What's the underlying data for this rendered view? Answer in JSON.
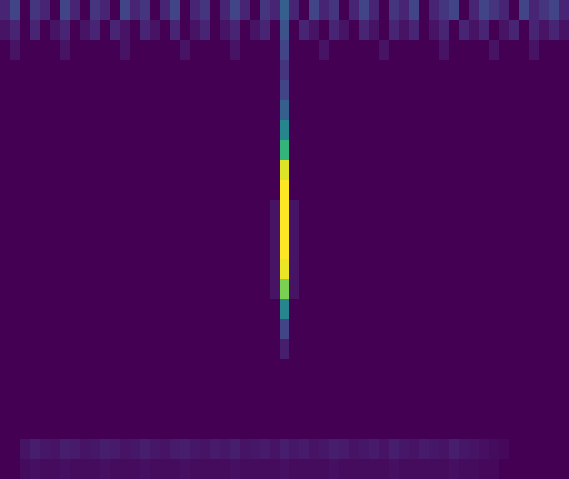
{
  "chart_data": {
    "type": "heatmap",
    "tick_labels": false,
    "zlim": [
      0,
      1
    ],
    "cells": [
      [
        0.1,
        0.2,
        0,
        0.15,
        0.1,
        0,
        0.2,
        0.1,
        0,
        0.15,
        0.1,
        0,
        0.2,
        0.1,
        0.15,
        0,
        0.1,
        0.2,
        0,
        0.1,
        0.15,
        0,
        0.1,
        0.2,
        0.1,
        0,
        0.15,
        0.1,
        0.3,
        0.1,
        0,
        0.2,
        0.1,
        0.15,
        0,
        0.1,
        0.2,
        0.1,
        0,
        0.15,
        0.1,
        0.2,
        0,
        0.1,
        0.15,
        0.2,
        0,
        0.1,
        0.2,
        0.15,
        0.1,
        0,
        0.2,
        0.1,
        0.15,
        0.2,
        0.1
      ],
      [
        0.05,
        0.1,
        0,
        0.1,
        0,
        0.05,
        0.1,
        0,
        0.05,
        0.1,
        0,
        0.1,
        0.05,
        0,
        0.1,
        0.05,
        0,
        0.1,
        0,
        0.05,
        0.1,
        0,
        0.05,
        0.1,
        0,
        0.05,
        0.1,
        0,
        0.25,
        0,
        0.1,
        0.05,
        0,
        0.1,
        0.05,
        0,
        0.1,
        0.05,
        0,
        0.1,
        0.05,
        0.1,
        0,
        0.05,
        0.1,
        0,
        0.1,
        0.05,
        0.1,
        0,
        0.05,
        0.1,
        0,
        0.1,
        0.05,
        0.1,
        0.05
      ],
      [
        0,
        0.05,
        0,
        0,
        0,
        0,
        0.05,
        0,
        0,
        0,
        0,
        0,
        0.05,
        0,
        0,
        0,
        0,
        0,
        0.05,
        0,
        0,
        0,
        0,
        0.05,
        0,
        0,
        0,
        0,
        0.2,
        0,
        0,
        0,
        0.05,
        0,
        0,
        0,
        0,
        0,
        0.05,
        0,
        0,
        0,
        0,
        0,
        0.05,
        0,
        0,
        0,
        0,
        0.05,
        0,
        0,
        0,
        0.05,
        0,
        0,
        0
      ],
      [
        0,
        0,
        0,
        0,
        0,
        0,
        0,
        0,
        0,
        0,
        0,
        0,
        0,
        0,
        0,
        0,
        0,
        0,
        0,
        0,
        0,
        0,
        0,
        0,
        0,
        0,
        0,
        0,
        0.15,
        0,
        0,
        0,
        0,
        0,
        0,
        0,
        0,
        0,
        0,
        0,
        0,
        0,
        0,
        0,
        0,
        0,
        0,
        0,
        0,
        0,
        0,
        0,
        0,
        0,
        0,
        0,
        0
      ],
      [
        0,
        0,
        0,
        0,
        0,
        0,
        0,
        0,
        0,
        0,
        0,
        0,
        0,
        0,
        0,
        0,
        0,
        0,
        0,
        0,
        0,
        0,
        0,
        0,
        0,
        0,
        0,
        0,
        0.2,
        0,
        0,
        0,
        0,
        0,
        0,
        0,
        0,
        0,
        0,
        0,
        0,
        0,
        0,
        0,
        0,
        0,
        0,
        0,
        0,
        0,
        0,
        0,
        0,
        0,
        0,
        0,
        0
      ],
      [
        0,
        0,
        0,
        0,
        0,
        0,
        0,
        0,
        0,
        0,
        0,
        0,
        0,
        0,
        0,
        0,
        0,
        0,
        0,
        0,
        0,
        0,
        0,
        0,
        0,
        0,
        0,
        0,
        0.3,
        0,
        0,
        0,
        0,
        0,
        0,
        0,
        0,
        0,
        0,
        0,
        0,
        0,
        0,
        0,
        0,
        0,
        0,
        0,
        0,
        0,
        0,
        0,
        0,
        0,
        0,
        0,
        0
      ],
      [
        0,
        0,
        0,
        0,
        0,
        0,
        0,
        0,
        0,
        0,
        0,
        0,
        0,
        0,
        0,
        0,
        0,
        0,
        0,
        0,
        0,
        0,
        0,
        0,
        0,
        0,
        0,
        0,
        0.45,
        0,
        0,
        0,
        0,
        0,
        0,
        0,
        0,
        0,
        0,
        0,
        0,
        0,
        0,
        0,
        0,
        0,
        0,
        0,
        0,
        0,
        0,
        0,
        0,
        0,
        0,
        0,
        0
      ],
      [
        0,
        0,
        0,
        0,
        0,
        0,
        0,
        0,
        0,
        0,
        0,
        0,
        0,
        0,
        0,
        0,
        0,
        0,
        0,
        0,
        0,
        0,
        0,
        0,
        0,
        0,
        0,
        0,
        0.65,
        0,
        0,
        0,
        0,
        0,
        0,
        0,
        0,
        0,
        0,
        0,
        0,
        0,
        0,
        0,
        0,
        0,
        0,
        0,
        0,
        0,
        0,
        0,
        0,
        0,
        0,
        0,
        0
      ],
      [
        0,
        0,
        0,
        0,
        0,
        0,
        0,
        0,
        0,
        0,
        0,
        0,
        0,
        0,
        0,
        0,
        0,
        0,
        0,
        0,
        0,
        0,
        0,
        0,
        0,
        0,
        0,
        0,
        0.95,
        0,
        0,
        0,
        0,
        0,
        0,
        0,
        0,
        0,
        0,
        0,
        0,
        0,
        0,
        0,
        0,
        0,
        0,
        0,
        0,
        0,
        0,
        0,
        0,
        0,
        0,
        0,
        0
      ],
      [
        0,
        0,
        0,
        0,
        0,
        0,
        0,
        0,
        0,
        0,
        0,
        0,
        0,
        0,
        0,
        0,
        0,
        0,
        0,
        0,
        0,
        0,
        0,
        0,
        0,
        0,
        0,
        0,
        1,
        0,
        0,
        0,
        0,
        0,
        0,
        0,
        0,
        0,
        0,
        0,
        0,
        0,
        0,
        0,
        0,
        0,
        0,
        0,
        0,
        0,
        0,
        0,
        0,
        0,
        0,
        0,
        0
      ],
      [
        0,
        0,
        0,
        0,
        0,
        0,
        0,
        0,
        0,
        0,
        0,
        0,
        0,
        0,
        0,
        0,
        0,
        0,
        0,
        0,
        0,
        0,
        0,
        0,
        0,
        0,
        0,
        0.05,
        1,
        0.05,
        0,
        0,
        0,
        0,
        0,
        0,
        0,
        0,
        0,
        0,
        0,
        0,
        0,
        0,
        0,
        0,
        0,
        0,
        0,
        0,
        0,
        0,
        0,
        0,
        0,
        0,
        0
      ],
      [
        0,
        0,
        0,
        0,
        0,
        0,
        0,
        0,
        0,
        0,
        0,
        0,
        0,
        0,
        0,
        0,
        0,
        0,
        0,
        0,
        0,
        0,
        0,
        0,
        0,
        0,
        0,
        0.05,
        1,
        0.05,
        0,
        0,
        0,
        0,
        0,
        0,
        0,
        0,
        0,
        0,
        0,
        0,
        0,
        0,
        0,
        0,
        0,
        0,
        0,
        0,
        0,
        0,
        0,
        0,
        0,
        0,
        0
      ],
      [
        0,
        0,
        0,
        0,
        0,
        0,
        0,
        0,
        0,
        0,
        0,
        0,
        0,
        0,
        0,
        0,
        0,
        0,
        0,
        0,
        0,
        0,
        0,
        0,
        0,
        0,
        0,
        0.05,
        1,
        0.05,
        0,
        0,
        0,
        0,
        0,
        0,
        0,
        0,
        0,
        0,
        0,
        0,
        0,
        0,
        0,
        0,
        0,
        0,
        0,
        0,
        0,
        0,
        0,
        0,
        0,
        0,
        0
      ],
      [
        0,
        0,
        0,
        0,
        0,
        0,
        0,
        0,
        0,
        0,
        0,
        0,
        0,
        0,
        0,
        0,
        0,
        0,
        0,
        0,
        0,
        0,
        0,
        0,
        0,
        0,
        0,
        0.05,
        0.97,
        0.05,
        0,
        0,
        0,
        0,
        0,
        0,
        0,
        0,
        0,
        0,
        0,
        0,
        0,
        0,
        0,
        0,
        0,
        0,
        0,
        0,
        0,
        0,
        0,
        0,
        0,
        0,
        0
      ],
      [
        0,
        0,
        0,
        0,
        0,
        0,
        0,
        0,
        0,
        0,
        0,
        0,
        0,
        0,
        0,
        0,
        0,
        0,
        0,
        0,
        0,
        0,
        0,
        0,
        0,
        0,
        0,
        0.05,
        0.8,
        0.05,
        0,
        0,
        0,
        0,
        0,
        0,
        0,
        0,
        0,
        0,
        0,
        0,
        0,
        0,
        0,
        0,
        0,
        0,
        0,
        0,
        0,
        0,
        0,
        0,
        0,
        0,
        0
      ],
      [
        0,
        0,
        0,
        0,
        0,
        0,
        0,
        0,
        0,
        0,
        0,
        0,
        0,
        0,
        0,
        0,
        0,
        0,
        0,
        0,
        0,
        0,
        0,
        0,
        0,
        0,
        0,
        0,
        0.45,
        0,
        0,
        0,
        0,
        0,
        0,
        0,
        0,
        0,
        0,
        0,
        0,
        0,
        0,
        0,
        0,
        0,
        0,
        0,
        0,
        0,
        0,
        0,
        0,
        0,
        0,
        0,
        0
      ],
      [
        0,
        0,
        0,
        0,
        0,
        0,
        0,
        0,
        0,
        0,
        0,
        0,
        0,
        0,
        0,
        0,
        0,
        0,
        0,
        0,
        0,
        0,
        0,
        0,
        0,
        0,
        0,
        0,
        0.2,
        0,
        0,
        0,
        0,
        0,
        0,
        0,
        0,
        0,
        0,
        0,
        0,
        0,
        0,
        0,
        0,
        0,
        0,
        0,
        0,
        0,
        0,
        0,
        0,
        0,
        0,
        0,
        0
      ],
      [
        0,
        0,
        0,
        0,
        0,
        0,
        0,
        0,
        0,
        0,
        0,
        0,
        0,
        0,
        0,
        0,
        0,
        0,
        0,
        0,
        0,
        0,
        0,
        0,
        0,
        0,
        0,
        0,
        0.08,
        0,
        0,
        0,
        0,
        0,
        0,
        0,
        0,
        0,
        0,
        0,
        0,
        0,
        0,
        0,
        0,
        0,
        0,
        0,
        0,
        0,
        0,
        0,
        0,
        0,
        0,
        0,
        0
      ],
      [
        0,
        0,
        0,
        0,
        0,
        0,
        0,
        0,
        0,
        0,
        0,
        0,
        0,
        0,
        0,
        0,
        0,
        0,
        0,
        0,
        0,
        0,
        0,
        0,
        0,
        0,
        0,
        0,
        0,
        0,
        0,
        0,
        0,
        0,
        0,
        0,
        0,
        0,
        0,
        0,
        0,
        0,
        0,
        0,
        0,
        0,
        0,
        0,
        0,
        0,
        0,
        0,
        0,
        0,
        0,
        0,
        0
      ],
      [
        0,
        0,
        0,
        0,
        0,
        0,
        0,
        0,
        0,
        0,
        0,
        0,
        0,
        0,
        0,
        0,
        0,
        0,
        0,
        0,
        0,
        0,
        0,
        0,
        0,
        0,
        0,
        0,
        0,
        0,
        0,
        0,
        0,
        0,
        0,
        0,
        0,
        0,
        0,
        0,
        0,
        0,
        0,
        0,
        0,
        0,
        0,
        0,
        0,
        0,
        0,
        0,
        0,
        0,
        0,
        0,
        0
      ],
      [
        0,
        0,
        0,
        0,
        0,
        0,
        0,
        0,
        0,
        0,
        0,
        0,
        0,
        0,
        0,
        0,
        0,
        0,
        0,
        0,
        0,
        0,
        0,
        0,
        0,
        0,
        0,
        0,
        0,
        0,
        0,
        0,
        0,
        0,
        0,
        0,
        0,
        0,
        0,
        0,
        0,
        0,
        0,
        0,
        0,
        0,
        0,
        0,
        0,
        0,
        0,
        0,
        0,
        0,
        0,
        0,
        0
      ],
      [
        0,
        0,
        0,
        0,
        0,
        0,
        0,
        0,
        0,
        0,
        0,
        0,
        0,
        0,
        0,
        0,
        0,
        0,
        0,
        0,
        0,
        0,
        0,
        0,
        0,
        0,
        0,
        0,
        0,
        0,
        0,
        0,
        0,
        0,
        0,
        0,
        0,
        0,
        0,
        0,
        0,
        0,
        0,
        0,
        0,
        0,
        0,
        0,
        0,
        0,
        0,
        0,
        0,
        0,
        0,
        0,
        0
      ],
      [
        0,
        0,
        0.05,
        0.08,
        0.06,
        0.05,
        0.08,
        0.07,
        0.05,
        0.06,
        0.08,
        0.07,
        0.05,
        0.06,
        0.08,
        0.06,
        0.05,
        0.07,
        0.08,
        0.06,
        0.05,
        0.07,
        0.06,
        0.08,
        0.05,
        0.06,
        0.07,
        0.05,
        0.08,
        0.06,
        0.07,
        0.05,
        0.06,
        0.08,
        0.07,
        0.05,
        0.06,
        0.07,
        0.05,
        0.08,
        0.06,
        0.05,
        0.07,
        0.06,
        0.05,
        0.08,
        0.06,
        0.05,
        0.04,
        0.03,
        0.02,
        0,
        0,
        0,
        0,
        0,
        0
      ],
      [
        0,
        0,
        0.03,
        0.04,
        0.03,
        0.03,
        0.04,
        0.03,
        0.03,
        0.03,
        0.04,
        0.03,
        0.03,
        0.03,
        0.04,
        0.03,
        0.03,
        0.03,
        0.04,
        0.03,
        0.03,
        0.03,
        0.03,
        0.04,
        0.03,
        0.03,
        0.03,
        0.03,
        0.04,
        0.03,
        0.03,
        0.03,
        0.03,
        0.04,
        0.03,
        0.03,
        0.03,
        0.03,
        0.03,
        0.04,
        0.03,
        0.03,
        0.03,
        0.03,
        0.03,
        0.04,
        0.03,
        0.03,
        0.02,
        0.02,
        0,
        0,
        0,
        0,
        0,
        0,
        0
      ]
    ]
  }
}
